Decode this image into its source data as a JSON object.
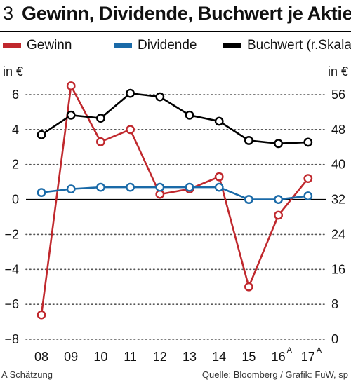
{
  "header": {
    "figure_number": "3",
    "title": "Gewinn, Dividende, Buchwert je Aktie"
  },
  "legend": [
    {
      "label": "Gewinn",
      "color": "#c0282d"
    },
    {
      "label": "Dividende",
      "color": "#1a6aa8"
    },
    {
      "label": "Buchwert (r.Skala)",
      "color": "#000000"
    }
  ],
  "footer": {
    "note": "A Schätzung",
    "source": "Quelle: Bloomberg / Grafik: FuW, sp"
  },
  "chart_data": {
    "type": "line",
    "categories": [
      "08",
      "09",
      "10",
      "11",
      "12",
      "13",
      "14",
      "15",
      "16",
      "17"
    ],
    "category_superscripts": [
      "",
      "",
      "",
      "",
      "",
      "",
      "",
      "",
      "A",
      "A"
    ],
    "y_left": {
      "unit": "in €",
      "ylim": [
        -8,
        6
      ],
      "ticks": [
        "6",
        "4",
        "2",
        "0",
        "−2",
        "−4",
        "−6",
        "−8"
      ],
      "tick_values": [
        6,
        4,
        2,
        0,
        -2,
        -4,
        -6,
        -8
      ]
    },
    "y_right": {
      "unit": "in €",
      "ylim": [
        0,
        56
      ],
      "ticks": [
        "56",
        "48",
        "40",
        "32",
        "24",
        "16",
        "8",
        "0"
      ],
      "tick_values": [
        56,
        48,
        40,
        32,
        24,
        16,
        8,
        0
      ]
    },
    "grid": "dotted-horizontal",
    "series": [
      {
        "name": "Gewinn",
        "axis": "left",
        "color": "#c0282d",
        "values": [
          -6.6,
          6.5,
          3.3,
          4.0,
          0.3,
          0.6,
          1.3,
          -5.0,
          -0.9,
          1.2
        ]
      },
      {
        "name": "Dividende",
        "axis": "left",
        "color": "#1a6aa8",
        "values": [
          0.4,
          0.6,
          0.7,
          0.7,
          0.7,
          0.7,
          0.7,
          0.0,
          0.0,
          0.2
        ]
      },
      {
        "name": "Buchwert (r.Skala)",
        "axis": "right",
        "color": "#000000",
        "values": [
          46.8,
          51.3,
          50.6,
          56.3,
          55.5,
          51.3,
          49.9,
          45.5,
          44.8,
          45.1
        ]
      }
    ]
  }
}
